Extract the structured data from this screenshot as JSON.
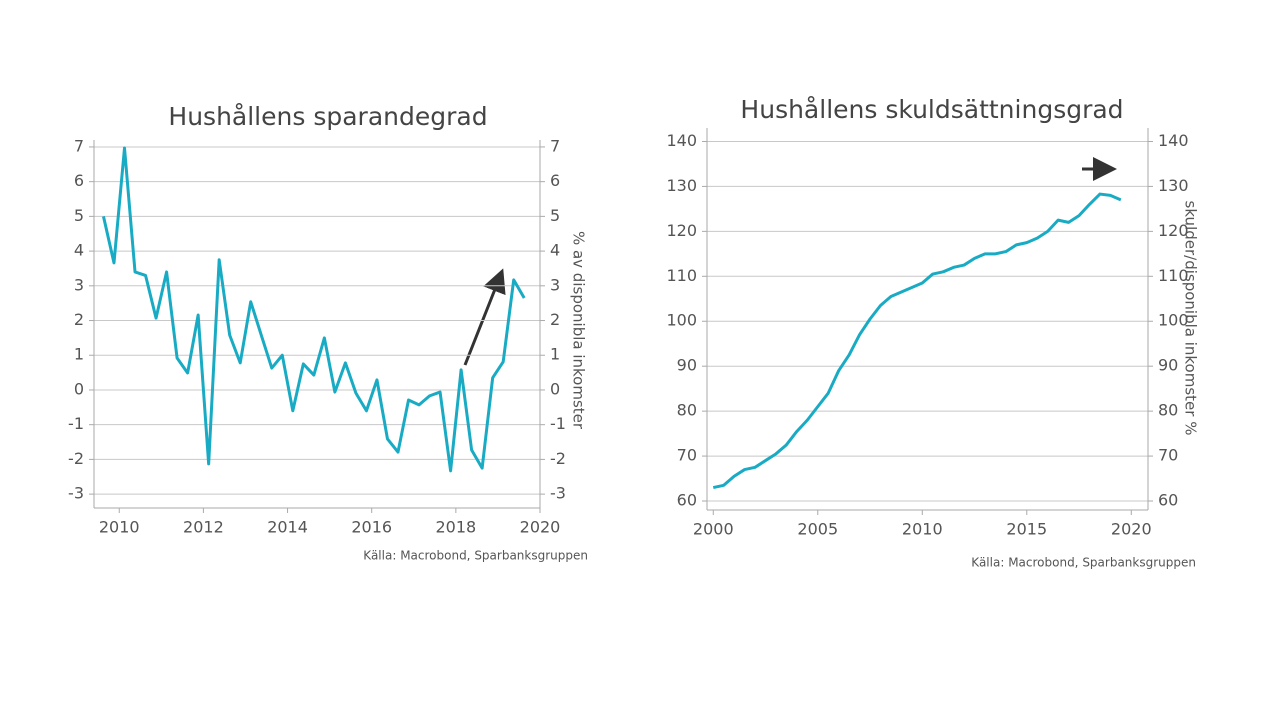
{
  "chart_data": [
    {
      "type": "line",
      "title": "Hushållens sparandegrad",
      "y_label": "% av disponibla inkomster",
      "source": "Källa: Macrobond, Sparbanksgruppen",
      "x": [
        2009.625,
        2009.875,
        2010.125,
        2010.375,
        2010.625,
        2010.875,
        2011.125,
        2011.375,
        2011.625,
        2011.875,
        2012.125,
        2012.375,
        2012.625,
        2012.875,
        2013.125,
        2013.375,
        2013.625,
        2013.875,
        2014.125,
        2014.375,
        2014.625,
        2014.875,
        2015.125,
        2015.375,
        2015.625,
        2015.875,
        2016.125,
        2016.375,
        2016.625,
        2016.875,
        2017.125,
        2017.375,
        2017.625,
        2017.875,
        2018.125,
        2018.375,
        2018.625,
        2018.875,
        2019.125,
        2019.375,
        2019.625
      ],
      "series": [
        {
          "color": "#19abc4",
          "values": [
            5.0,
            3.66,
            6.97,
            3.4,
            3.3,
            2.07,
            3.4,
            0.92,
            0.49,
            2.16,
            -2.13,
            3.75,
            1.58,
            0.78,
            2.54,
            1.58,
            0.63,
            1.0,
            -0.6,
            0.75,
            0.43,
            1.5,
            -0.06,
            0.78,
            -0.09,
            -0.6,
            0.29,
            -1.41,
            -1.79,
            -0.29,
            -0.43,
            -0.17,
            -0.06,
            -2.33,
            0.58,
            -1.73,
            -2.25,
            0.35,
            0.81,
            3.17,
            2.65
          ]
        }
      ],
      "xlim": [
        2009.4,
        2020
      ],
      "xticks": [
        2010,
        2012,
        2014,
        2016,
        2018,
        2020
      ],
      "ylim": [
        -3.4,
        7.2
      ],
      "yticks": [
        -3,
        -2,
        -1,
        0,
        1,
        2,
        3,
        4,
        5,
        6,
        7
      ],
      "grid": true
    },
    {
      "type": "line",
      "title": "Hushållens skuldsättningsgrad",
      "y_label": "skulder/disponibla inkomster %",
      "source": "Källa: Macrobond, Sparbanksgruppen",
      "x": [
        2000,
        2000.5,
        2001,
        2001.5,
        2002,
        2002.5,
        2003,
        2003.5,
        2004,
        2004.5,
        2005,
        2005.5,
        2006,
        2006.5,
        2007,
        2007.5,
        2008,
        2008.5,
        2009,
        2009.5,
        2010,
        2010.5,
        2011,
        2011.5,
        2012,
        2012.5,
        2013,
        2013.5,
        2014,
        2014.5,
        2015,
        2015.5,
        2016,
        2016.5,
        2017,
        2017.5,
        2018,
        2018.5,
        2019,
        2019.5
      ],
      "series": [
        {
          "color": "#19abc4",
          "values": [
            63,
            63.5,
            65.5,
            67,
            67.5,
            69,
            70.5,
            72.5,
            75.5,
            78,
            81,
            84,
            89,
            92.5,
            97,
            100.5,
            103.5,
            105.5,
            106.5,
            107.5,
            108.5,
            110.5,
            111,
            112,
            112.5,
            114,
            115,
            115,
            115.5,
            117,
            117.5,
            118.5,
            120,
            122.5,
            122,
            123.5,
            126,
            128.3,
            128,
            127
          ]
        }
      ],
      "xlim": [
        1999.7,
        2020.8
      ],
      "xticks": [
        2000,
        2005,
        2010,
        2015,
        2020
      ],
      "ylim": [
        58,
        143
      ],
      "yticks": [
        60,
        70,
        80,
        90,
        100,
        110,
        120,
        130,
        140
      ],
      "grid": true
    }
  ]
}
